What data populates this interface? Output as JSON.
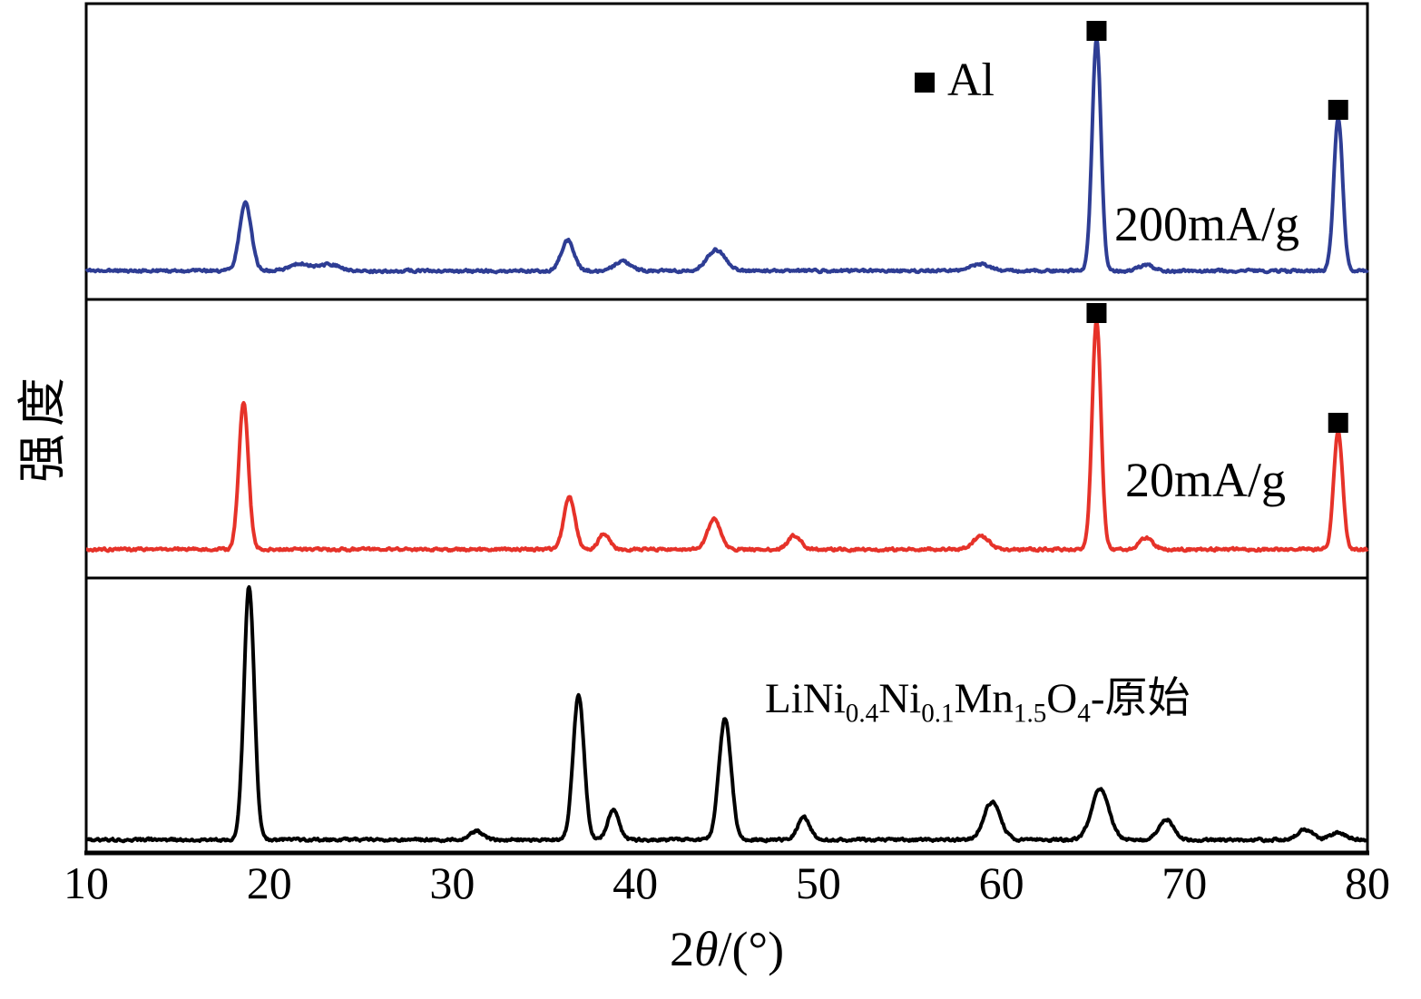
{
  "figure": {
    "background": "#ffffff",
    "frame_color": "#000000"
  },
  "legend": {
    "symbol": "filled-square",
    "label": "Al",
    "color": "#000000"
  },
  "labels": {
    "series_0": "200mA/g",
    "series_1": "20mA/g",
    "series_2_plain": "LiNi0.4Ni0.1Mn1.5O4-原始",
    "series_2_segments": [
      {
        "t": "LiNi"
      },
      {
        "t": "0.4",
        "sub": 1
      },
      {
        "t": "Ni"
      },
      {
        "t": "0.1",
        "sub": 1
      },
      {
        "t": "Mn"
      },
      {
        "t": "1.5",
        "sub": 1
      },
      {
        "t": "O"
      },
      {
        "t": "4",
        "sub": 1
      },
      {
        "t": "-原始"
      }
    ],
    "x_label_segments": [
      {
        "t": "2"
      },
      {
        "t": "θ",
        "i": 1
      },
      {
        "t": "/(°)"
      }
    ]
  },
  "chart_data": {
    "type": "line",
    "title": "",
    "xlabel": "2θ/(°)",
    "ylabel": "强度",
    "x_range": [
      10,
      80
    ],
    "x_ticks": [
      10,
      20,
      30,
      40,
      50,
      60,
      70,
      80
    ],
    "grid": false,
    "panels": 3,
    "legend_entries": [
      {
        "symbol": "filled-square",
        "label": "Al"
      }
    ],
    "series": [
      {
        "name": "200mA/g",
        "color": "#2e3d94",
        "panel": 0,
        "peaks": [
          {
            "two_theta": 18.7,
            "rel_intensity": 0.29,
            "width": 0.32
          },
          {
            "two_theta": 21.7,
            "rel_intensity": 0.03,
            "width": 0.55
          },
          {
            "two_theta": 23.3,
            "rel_intensity": 0.028,
            "width": 0.55
          },
          {
            "two_theta": 36.3,
            "rel_intensity": 0.13,
            "width": 0.35
          },
          {
            "two_theta": 39.3,
            "rel_intensity": 0.04,
            "width": 0.45
          },
          {
            "two_theta": 44.4,
            "rel_intensity": 0.09,
            "width": 0.5
          },
          {
            "two_theta": 58.8,
            "rel_intensity": 0.03,
            "width": 0.5
          },
          {
            "two_theta": 65.2,
            "rel_intensity": 1.0,
            "width": 0.24,
            "al": true
          },
          {
            "two_theta": 67.9,
            "rel_intensity": 0.025,
            "width": 0.4
          },
          {
            "two_theta": 78.4,
            "rel_intensity": 0.66,
            "width": 0.24,
            "al": true
          }
        ]
      },
      {
        "name": "20mA/g",
        "color": "#e63229",
        "panel": 1,
        "peaks": [
          {
            "two_theta": 18.6,
            "rel_intensity": 0.64,
            "width": 0.26
          },
          {
            "two_theta": 36.4,
            "rel_intensity": 0.23,
            "width": 0.3
          },
          {
            "two_theta": 38.3,
            "rel_intensity": 0.07,
            "width": 0.3
          },
          {
            "two_theta": 44.3,
            "rel_intensity": 0.13,
            "width": 0.35
          },
          {
            "two_theta": 48.7,
            "rel_intensity": 0.06,
            "width": 0.35
          },
          {
            "two_theta": 58.9,
            "rel_intensity": 0.055,
            "width": 0.45
          },
          {
            "two_theta": 65.2,
            "rel_intensity": 1.0,
            "width": 0.24,
            "al": true
          },
          {
            "two_theta": 67.9,
            "rel_intensity": 0.05,
            "width": 0.35
          },
          {
            "two_theta": 78.4,
            "rel_intensity": 0.52,
            "width": 0.24,
            "al": true
          }
        ]
      },
      {
        "name": "LiNi0.4Ni0.1Mn1.5O4-原始",
        "color": "#000000",
        "panel": 2,
        "peaks": [
          {
            "two_theta": 18.9,
            "rel_intensity": 1.0,
            "width": 0.28
          },
          {
            "two_theta": 31.3,
            "rel_intensity": 0.035,
            "width": 0.35
          },
          {
            "two_theta": 36.9,
            "rel_intensity": 0.57,
            "width": 0.3
          },
          {
            "two_theta": 38.8,
            "rel_intensity": 0.12,
            "width": 0.3
          },
          {
            "two_theta": 44.9,
            "rel_intensity": 0.48,
            "width": 0.33
          },
          {
            "two_theta": 49.2,
            "rel_intensity": 0.09,
            "width": 0.33
          },
          {
            "two_theta": 59.5,
            "rel_intensity": 0.15,
            "width": 0.45
          },
          {
            "two_theta": 65.4,
            "rel_intensity": 0.2,
            "width": 0.48
          },
          {
            "two_theta": 69.0,
            "rel_intensity": 0.08,
            "width": 0.4
          },
          {
            "two_theta": 76.6,
            "rel_intensity": 0.04,
            "width": 0.4
          },
          {
            "two_theta": 78.4,
            "rel_intensity": 0.03,
            "width": 0.4
          }
        ]
      }
    ]
  }
}
